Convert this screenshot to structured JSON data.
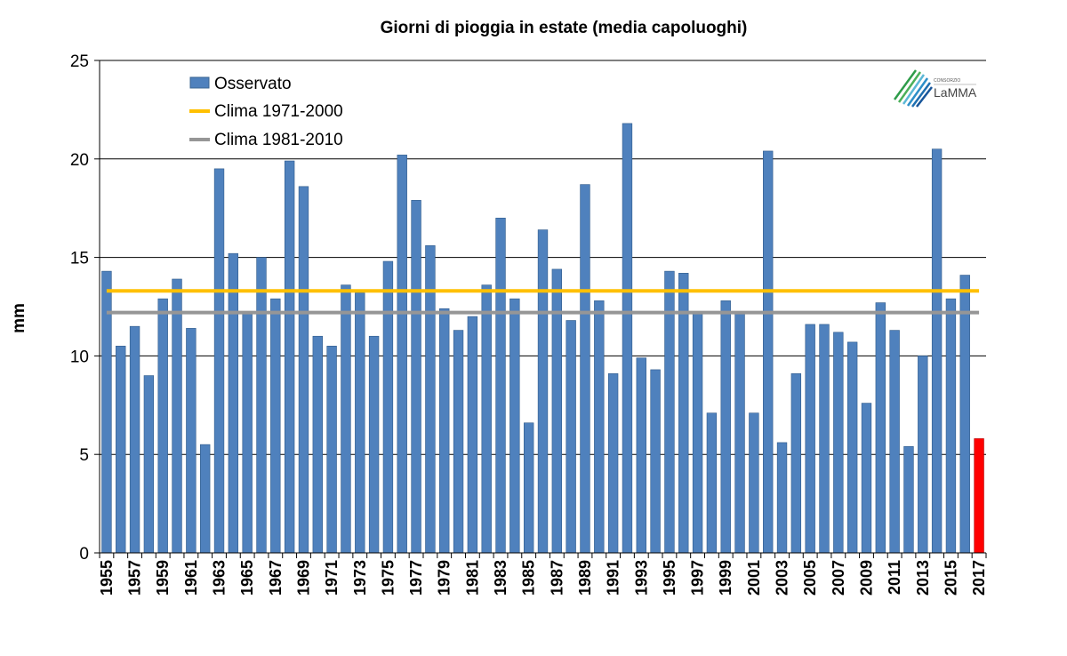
{
  "chart_data": {
    "type": "bar",
    "title": "Giorni di pioggia in estate (media capoluoghi)",
    "xlabel": "",
    "ylabel": "mm",
    "ylim": [
      0,
      25
    ],
    "yticks": [
      0,
      5,
      10,
      15,
      20,
      25
    ],
    "grid": true,
    "legend_position": "top-left",
    "categories": [
      1955,
      1956,
      1957,
      1958,
      1959,
      1960,
      1961,
      1962,
      1963,
      1964,
      1965,
      1966,
      1967,
      1968,
      1969,
      1970,
      1971,
      1972,
      1973,
      1974,
      1975,
      1976,
      1977,
      1978,
      1979,
      1980,
      1981,
      1982,
      1983,
      1984,
      1985,
      1986,
      1987,
      1988,
      1989,
      1990,
      1991,
      1992,
      1993,
      1994,
      1995,
      1996,
      1997,
      1998,
      1999,
      2000,
      2001,
      2002,
      2003,
      2004,
      2005,
      2006,
      2007,
      2008,
      2009,
      2010,
      2011,
      2012,
      2013,
      2014,
      2015,
      2016,
      2017
    ],
    "xtick_labels": [
      "1955",
      "1957",
      "1959",
      "1961",
      "1963",
      "1965",
      "1967",
      "1969",
      "1971",
      "1973",
      "1975",
      "1977",
      "1979",
      "1981",
      "1983",
      "1985",
      "1987",
      "1989",
      "1991",
      "1993",
      "1995",
      "1997",
      "1999",
      "2001",
      "2003",
      "2005",
      "2007",
      "2009",
      "2011",
      "2013",
      "2015",
      "2017"
    ],
    "series": [
      {
        "name": "Osservato",
        "color": "#4f81bd",
        "highlight_last_color": "#ff0000",
        "values": [
          14.3,
          10.5,
          11.5,
          9.0,
          12.9,
          13.9,
          11.4,
          5.5,
          19.5,
          15.2,
          12.2,
          15.0,
          12.9,
          19.9,
          18.6,
          11.0,
          10.5,
          13.6,
          13.2,
          11.0,
          14.8,
          20.2,
          17.9,
          15.6,
          12.4,
          11.3,
          12.0,
          13.6,
          17.0,
          12.9,
          6.6,
          16.4,
          14.4,
          11.8,
          18.7,
          12.8,
          9.1,
          21.8,
          9.9,
          9.3,
          14.3,
          14.2,
          12.2,
          7.1,
          12.8,
          12.2,
          7.1,
          20.4,
          5.6,
          9.1,
          11.6,
          11.6,
          11.2,
          10.7,
          7.6,
          12.7,
          11.3,
          5.4,
          10.0,
          20.5,
          12.9,
          14.1,
          5.8
        ]
      },
      {
        "name": "Clima 1971-2000",
        "type": "hline",
        "value": 13.3,
        "color": "#ffc000"
      },
      {
        "name": "Clima 1981-2010",
        "type": "hline",
        "value": 12.2,
        "color": "#969696"
      }
    ]
  },
  "logo": {
    "small_text": "CONSORZIO",
    "big_text": "LaMMA"
  }
}
